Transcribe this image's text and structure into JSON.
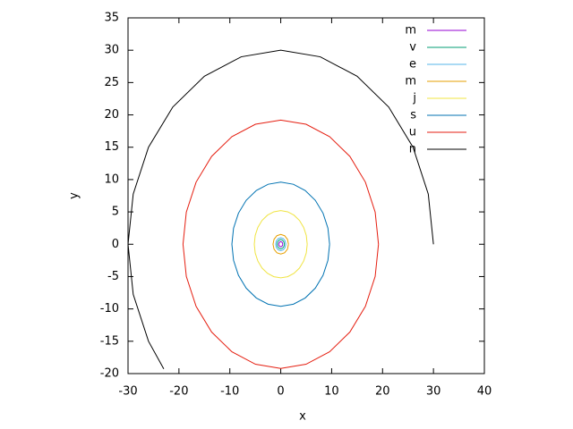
{
  "chart_data": {
    "type": "line",
    "x_label": "x",
    "y_label": "y",
    "xlim": [
      -30,
      40
    ],
    "xticks": [
      -30,
      -20,
      -10,
      0,
      10,
      20,
      30,
      40
    ],
    "ylim": [
      -20,
      35
    ],
    "yticks": [
      -20,
      -15,
      -10,
      -5,
      0,
      5,
      10,
      15,
      20,
      25,
      30,
      35
    ],
    "grid": false,
    "legend": "top-right",
    "series": [
      {
        "name": "m",
        "color": "#9400d3",
        "x": [
          0.39,
          0.34,
          0.2,
          0,
          -0.2,
          -0.34,
          -0.39,
          -0.34,
          -0.2,
          0,
          0.2,
          0.34,
          0.39
        ],
        "values": [
          0,
          0.2,
          0.34,
          0.39,
          0.34,
          0.2,
          0,
          -0.2,
          -0.34,
          -0.39,
          -0.34,
          -0.2,
          0
        ]
      },
      {
        "name": "v",
        "color": "#009e73",
        "x": [
          0.72,
          0.62,
          0.36,
          0,
          -0.36,
          -0.62,
          -0.72,
          -0.62,
          -0.36,
          0,
          0.36,
          0.62,
          0.72
        ],
        "values": [
          0,
          0.36,
          0.62,
          0.72,
          0.62,
          0.36,
          0,
          -0.36,
          -0.62,
          -0.72,
          -0.62,
          -0.36,
          0
        ]
      },
      {
        "name": "e",
        "color": "#56b4e9",
        "x": [
          1,
          0.87,
          0.5,
          0,
          -0.5,
          -0.87,
          -1,
          -0.87,
          -0.5,
          0,
          0.5,
          0.87,
          1
        ],
        "values": [
          0,
          0.5,
          0.87,
          1,
          0.87,
          0.5,
          0,
          -0.5,
          -0.87,
          -1,
          -0.87,
          -0.5,
          0
        ]
      },
      {
        "name": "m",
        "color": "#e69f00",
        "x": [
          1.52,
          1.32,
          0.76,
          0,
          -0.76,
          -1.32,
          -1.52,
          -1.32,
          -0.76,
          0,
          0.76,
          1.32,
          1.52
        ],
        "values": [
          0,
          0.76,
          1.32,
          1.52,
          1.32,
          0.76,
          0,
          -0.76,
          -1.32,
          -1.52,
          -1.32,
          -0.76,
          0
        ]
      },
      {
        "name": "j",
        "color": "#f0e442",
        "x": [
          5.2,
          5.02,
          4.5,
          3.68,
          2.6,
          1.35,
          0,
          -1.35,
          -2.6,
          -3.68,
          -4.5,
          -5.02,
          -5.2,
          -5.02,
          -4.5,
          -3.68,
          -2.6,
          -1.35,
          0,
          1.35,
          2.6,
          3.68,
          4.5,
          5.02,
          5.2
        ],
        "values": [
          0,
          1.35,
          2.6,
          3.68,
          4.5,
          5.02,
          5.2,
          5.02,
          4.5,
          3.68,
          2.6,
          1.35,
          0,
          -1.35,
          -2.6,
          -3.68,
          -4.5,
          -5.02,
          -5.2,
          -5.02,
          -4.5,
          -3.68,
          -2.6,
          -1.35,
          0
        ]
      },
      {
        "name": "s",
        "color": "#0072b2",
        "x": [
          9.6,
          9.27,
          8.31,
          6.79,
          4.8,
          2.48,
          0,
          -2.48,
          -4.8,
          -6.79,
          -8.31,
          -9.27,
          -9.6,
          -9.27,
          -8.31,
          -6.79,
          -4.8,
          -2.48,
          0,
          2.48,
          4.8,
          6.79,
          8.31,
          9.27,
          9.6
        ],
        "values": [
          0,
          2.48,
          4.8,
          6.79,
          8.31,
          9.27,
          9.6,
          9.27,
          8.31,
          6.79,
          4.8,
          2.48,
          0,
          -2.48,
          -4.8,
          -6.79,
          -8.31,
          -9.27,
          -9.6,
          -9.27,
          -8.31,
          -6.79,
          -4.8,
          -2.48,
          0
        ]
      },
      {
        "name": "u",
        "color": "#e51e10",
        "x": [
          19.2,
          18.55,
          16.63,
          13.58,
          9.6,
          4.97,
          0,
          -4.97,
          -9.6,
          -13.58,
          -16.63,
          -18.55,
          -19.2,
          -18.55,
          -16.63,
          -13.58,
          -9.6,
          -4.97,
          0,
          4.97,
          9.6,
          13.58,
          16.63,
          18.55,
          19.2
        ],
        "values": [
          0,
          4.97,
          9.6,
          13.58,
          16.63,
          18.55,
          19.2,
          18.55,
          16.63,
          13.58,
          9.6,
          4.97,
          0,
          -4.97,
          -9.6,
          -13.58,
          -16.63,
          -18.55,
          -19.2,
          -18.55,
          -16.63,
          -13.58,
          -9.6,
          -4.97,
          0
        ]
      },
      {
        "name": "n",
        "color": "#000000",
        "x": [
          30,
          28.98,
          25.98,
          21.21,
          15,
          7.76,
          0,
          -7.76,
          -15,
          -21.21,
          -25.98,
          -28.98,
          -30,
          -28.98,
          -25.98,
          -22.98
        ],
        "values": [
          0,
          7.76,
          15,
          21.21,
          25.98,
          28.98,
          30,
          28.98,
          25.98,
          21.21,
          15,
          7.76,
          0,
          -7.76,
          -15,
          -19.28
        ]
      }
    ]
  }
}
